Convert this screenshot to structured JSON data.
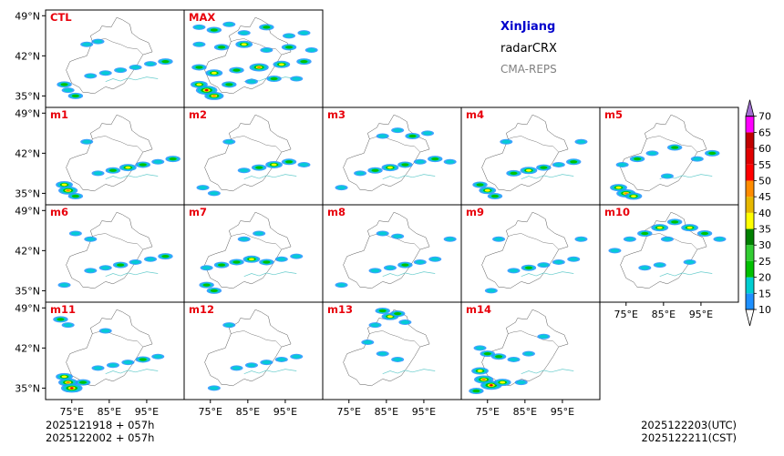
{
  "header": {
    "region": "XinJiang",
    "product": "radarCRX",
    "model": "CMA-REPS"
  },
  "footer": {
    "init_line_1": "2025121918  +  057h",
    "init_line_2": "2025122002  +  057h",
    "valid_utc": "2025122203(UTC)",
    "valid_cst": "2025122211(CST)"
  },
  "colors": {
    "region_title": "#0000cc",
    "panel_label": "#e8000b",
    "border": "#555555",
    "lake": "#66cccc"
  },
  "colorbar": {
    "levels": [
      "10",
      "15",
      "20",
      "25",
      "30",
      "35",
      "40",
      "45",
      "50",
      "55",
      "60",
      "65",
      "70"
    ],
    "colors": [
      "#1e90ff",
      "#00ced1",
      "#00c000",
      "#32cd32",
      "#008000",
      "#ffff00",
      "#e6b800",
      "#ff8c00",
      "#ff0000",
      "#e00000",
      "#c00000",
      "#ff00ff",
      "#9932cc",
      "#a070d0"
    ],
    "extend": "both"
  },
  "chart_data": {
    "type": "map-panels",
    "xlabel": "",
    "ylabel": "",
    "lon_range": [
      68,
      105
    ],
    "lat_range": [
      33,
      50
    ],
    "xticks": [
      75,
      85,
      95
    ],
    "yticks": [
      35,
      42,
      49
    ],
    "xtick_labels": [
      "75°E",
      "85°E",
      "95°E"
    ],
    "ytick_labels": [
      "35°N",
      "42°N",
      "49°N"
    ],
    "panels": [
      {
        "name": "CTL",
        "row": 0,
        "col": 0,
        "cells": [
          [
            80,
            38.5,
            0
          ],
          [
            84,
            39,
            0
          ],
          [
            88,
            39.5,
            0
          ],
          [
            92,
            40,
            0
          ],
          [
            96,
            40.6,
            0
          ],
          [
            100,
            41,
            1
          ],
          [
            73,
            37,
            1
          ],
          [
            74,
            36,
            0
          ],
          [
            76,
            35,
            1
          ],
          [
            79,
            44,
            0
          ],
          [
            82,
            44.5,
            0
          ]
        ]
      },
      {
        "name": "MAX",
        "row": 0,
        "col": 1,
        "cells": [
          [
            72,
            47,
            0
          ],
          [
            76,
            46.5,
            1
          ],
          [
            80,
            47.5,
            0
          ],
          [
            84,
            46,
            0
          ],
          [
            90,
            47,
            1
          ],
          [
            96,
            45.5,
            0
          ],
          [
            100,
            46,
            0
          ],
          [
            72,
            44,
            0
          ],
          [
            78,
            43.5,
            1
          ],
          [
            84,
            44,
            2
          ],
          [
            90,
            43,
            0
          ],
          [
            96,
            43.5,
            1
          ],
          [
            102,
            43,
            0
          ],
          [
            72,
            40,
            1
          ],
          [
            76,
            39,
            2
          ],
          [
            82,
            39.5,
            1
          ],
          [
            88,
            40,
            3
          ],
          [
            94,
            40.5,
            2
          ],
          [
            100,
            41,
            1
          ],
          [
            72,
            37,
            2
          ],
          [
            74,
            36,
            4
          ],
          [
            76,
            35,
            3
          ],
          [
            80,
            37,
            1
          ],
          [
            86,
            37.5,
            0
          ],
          [
            92,
            38,
            1
          ],
          [
            98,
            38,
            0
          ]
        ]
      },
      {
        "name": "m1",
        "row": 1,
        "col": 0,
        "cells": [
          [
            82,
            38.5,
            0
          ],
          [
            86,
            39,
            1
          ],
          [
            90,
            39.5,
            2
          ],
          [
            94,
            40,
            1
          ],
          [
            98,
            40.5,
            0
          ],
          [
            102,
            41,
            1
          ],
          [
            73,
            36.5,
            2
          ],
          [
            74,
            35.5,
            3
          ],
          [
            76,
            34.5,
            1
          ],
          [
            79,
            44,
            0
          ]
        ]
      },
      {
        "name": "m2",
        "row": 1,
        "col": 1,
        "cells": [
          [
            84,
            39,
            0
          ],
          [
            88,
            39.5,
            1
          ],
          [
            92,
            40,
            2
          ],
          [
            96,
            40.5,
            1
          ],
          [
            100,
            40,
            0
          ],
          [
            73,
            36,
            0
          ],
          [
            76,
            35,
            0
          ],
          [
            80,
            44,
            0
          ]
        ]
      },
      {
        "name": "m3",
        "row": 1,
        "col": 2,
        "cells": [
          [
            78,
            38.5,
            0
          ],
          [
            82,
            39,
            1
          ],
          [
            86,
            39.5,
            2
          ],
          [
            90,
            40,
            1
          ],
          [
            94,
            40.5,
            0
          ],
          [
            98,
            41,
            1
          ],
          [
            102,
            40.5,
            0
          ],
          [
            84,
            45,
            0
          ],
          [
            88,
            46,
            0
          ],
          [
            92,
            45,
            1
          ],
          [
            96,
            45.5,
            0
          ],
          [
            73,
            36,
            0
          ]
        ]
      },
      {
        "name": "m4",
        "row": 1,
        "col": 3,
        "cells": [
          [
            82,
            38.5,
            1
          ],
          [
            86,
            39,
            2
          ],
          [
            90,
            39.5,
            1
          ],
          [
            94,
            40,
            0
          ],
          [
            98,
            40.5,
            1
          ],
          [
            73,
            36.5,
            1
          ],
          [
            75,
            35.5,
            2
          ],
          [
            77,
            34.5,
            1
          ],
          [
            80,
            44,
            0
          ],
          [
            100,
            44,
            0
          ]
        ]
      },
      {
        "name": "m5",
        "row": 1,
        "col": 4,
        "cells": [
          [
            74,
            40,
            0
          ],
          [
            78,
            41,
            1
          ],
          [
            82,
            42,
            0
          ],
          [
            88,
            43,
            1
          ],
          [
            94,
            41,
            0
          ],
          [
            98,
            42,
            1
          ],
          [
            73,
            36,
            2
          ],
          [
            75,
            35,
            3
          ],
          [
            77,
            34.5,
            2
          ],
          [
            86,
            38,
            0
          ]
        ]
      },
      {
        "name": "m6",
        "row": 2,
        "col": 0,
        "cells": [
          [
            80,
            38.5,
            0
          ],
          [
            84,
            39,
            0
          ],
          [
            88,
            39.5,
            1
          ],
          [
            92,
            40,
            0
          ],
          [
            96,
            40.5,
            0
          ],
          [
            100,
            41,
            1
          ],
          [
            76,
            45,
            0
          ],
          [
            80,
            44,
            0
          ],
          [
            73,
            36,
            0
          ]
        ]
      },
      {
        "name": "m7",
        "row": 2,
        "col": 1,
        "cells": [
          [
            74,
            39,
            0
          ],
          [
            78,
            39.5,
            1
          ],
          [
            82,
            40,
            1
          ],
          [
            86,
            40.5,
            2
          ],
          [
            90,
            40,
            1
          ],
          [
            94,
            40.5,
            0
          ],
          [
            98,
            41,
            0
          ],
          [
            84,
            44,
            0
          ],
          [
            88,
            45,
            0
          ],
          [
            74,
            36,
            1
          ],
          [
            76,
            35,
            1
          ]
        ]
      },
      {
        "name": "m8",
        "row": 2,
        "col": 2,
        "cells": [
          [
            82,
            38.5,
            0
          ],
          [
            86,
            39,
            0
          ],
          [
            90,
            39.5,
            1
          ],
          [
            94,
            40,
            0
          ],
          [
            98,
            40.5,
            0
          ],
          [
            88,
            44.5,
            0
          ],
          [
            84,
            45,
            0
          ],
          [
            102,
            44,
            0
          ],
          [
            73,
            36,
            0
          ]
        ]
      },
      {
        "name": "m9",
        "row": 2,
        "col": 3,
        "cells": [
          [
            82,
            38.5,
            0
          ],
          [
            86,
            39,
            1
          ],
          [
            90,
            39.5,
            0
          ],
          [
            94,
            40,
            0
          ],
          [
            98,
            40.5,
            0
          ],
          [
            78,
            44,
            0
          ],
          [
            100,
            44,
            0
          ],
          [
            76,
            35,
            0
          ]
        ]
      },
      {
        "name": "m10",
        "row": 2,
        "col": 4,
        "cells": [
          [
            76,
            44,
            0
          ],
          [
            80,
            45,
            1
          ],
          [
            84,
            46,
            2
          ],
          [
            88,
            47,
            1
          ],
          [
            92,
            46,
            2
          ],
          [
            96,
            45,
            1
          ],
          [
            100,
            44,
            0
          ],
          [
            72,
            42,
            0
          ],
          [
            86,
            44,
            0
          ],
          [
            80,
            39,
            0
          ],
          [
            84,
            39.5,
            0
          ],
          [
            92,
            40,
            0
          ]
        ]
      },
      {
        "name": "m11",
        "row": 3,
        "col": 0,
        "cells": [
          [
            72,
            47,
            1
          ],
          [
            74,
            46,
            0
          ],
          [
            82,
            38.5,
            0
          ],
          [
            86,
            39,
            0
          ],
          [
            90,
            39.5,
            0
          ],
          [
            94,
            40,
            1
          ],
          [
            98,
            40.5,
            0
          ],
          [
            73,
            37,
            2
          ],
          [
            74,
            36,
            3
          ],
          [
            75,
            35,
            4
          ],
          [
            78,
            36,
            1
          ],
          [
            84,
            45,
            0
          ]
        ]
      },
      {
        "name": "m12",
        "row": 3,
        "col": 1,
        "cells": [
          [
            82,
            38.5,
            0
          ],
          [
            86,
            39,
            0
          ],
          [
            90,
            39.5,
            0
          ],
          [
            94,
            40,
            0
          ],
          [
            98,
            40.5,
            0
          ],
          [
            80,
            46,
            0
          ],
          [
            76,
            35,
            0
          ]
        ]
      },
      {
        "name": "m13",
        "row": 3,
        "col": 2,
        "cells": [
          [
            84,
            48.5,
            1
          ],
          [
            86,
            47.5,
            2
          ],
          [
            88,
            48,
            1
          ],
          [
            82,
            46,
            0
          ],
          [
            90,
            46.5,
            0
          ],
          [
            80,
            43,
            0
          ],
          [
            84,
            41,
            0
          ],
          [
            88,
            40,
            0
          ]
        ]
      },
      {
        "name": "m14",
        "row": 3,
        "col": 3,
        "cells": [
          [
            73,
            42,
            0
          ],
          [
            75,
            41,
            1
          ],
          [
            78,
            40.5,
            1
          ],
          [
            82,
            40,
            0
          ],
          [
            86,
            41,
            0
          ],
          [
            90,
            44,
            0
          ],
          [
            73,
            38,
            2
          ],
          [
            74,
            36.5,
            3
          ],
          [
            76,
            35.5,
            4
          ],
          [
            79,
            36,
            2
          ],
          [
            72,
            34.5,
            1
          ],
          [
            84,
            36,
            0
          ]
        ]
      }
    ],
    "intensity_index": "cell third value: 0 light, 1 moderate, 2 strong, 3 very strong, 4 extreme"
  }
}
